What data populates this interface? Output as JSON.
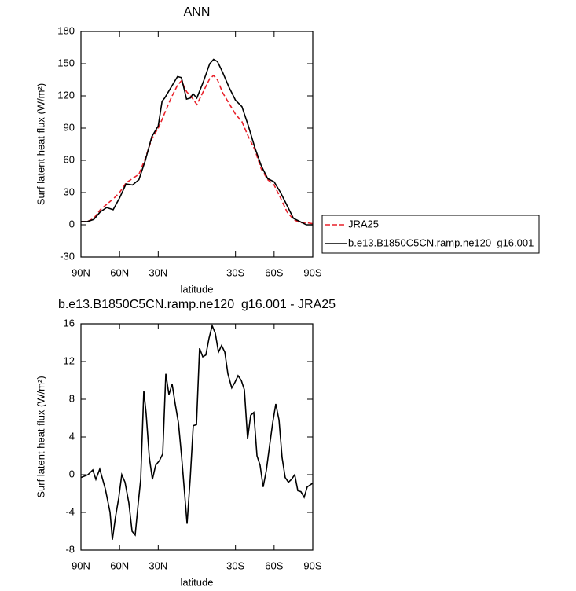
{
  "chart_data": [
    {
      "type": "line",
      "title": "ANN",
      "xlabel": "latitude",
      "ylabel": "Surf latent heat flux (W/m²)",
      "xlim": [
        90,
        -90
      ],
      "xticks": [
        {
          "value": 90,
          "label": "90N"
        },
        {
          "value": 60,
          "label": "60N"
        },
        {
          "value": 30,
          "label": "30N"
        },
        {
          "value": -30,
          "label": "30S"
        },
        {
          "value": -60,
          "label": "60S"
        },
        {
          "value": -90,
          "label": "90S"
        }
      ],
      "ylim": [
        -30,
        180
      ],
      "yticks": [
        -30,
        0,
        30,
        60,
        90,
        120,
        150,
        180
      ],
      "legend": "outside-right",
      "x": [
        90,
        85,
        80,
        75,
        70,
        65,
        60,
        55,
        50,
        45,
        40,
        35,
        30,
        27,
        25,
        20,
        15,
        12,
        8,
        5,
        3,
        0,
        -5,
        -10,
        -13,
        -16,
        -20,
        -25,
        -30,
        -35,
        -40,
        -45,
        -50,
        -55,
        -60,
        -65,
        -70,
        -75,
        -80,
        -85,
        -90
      ],
      "series": [
        {
          "name": "JRA25",
          "color": "#e8212a",
          "dash": true,
          "values": [
            3,
            3,
            6,
            14,
            19,
            24,
            30,
            39,
            43,
            47,
            62,
            80,
            90,
            98,
            104,
            118,
            130,
            134,
            124,
            120,
            117,
            112,
            124,
            136,
            139,
            135,
            123,
            113,
            103,
            96,
            82,
            70,
            52,
            42,
            37,
            25,
            12,
            5,
            2,
            2,
            1
          ]
        },
        {
          "name": "b.e13.B1850C5CN.ramp.ne120_g16.001",
          "color": "#000000",
          "dash": false,
          "values": [
            3,
            3,
            5,
            12,
            16,
            14,
            25,
            38,
            37,
            42,
            60,
            82,
            92,
            115,
            118,
            128,
            138,
            137,
            117,
            118,
            122,
            118,
            133,
            150,
            154,
            152,
            142,
            128,
            116,
            110,
            92,
            72,
            55,
            43,
            40,
            30,
            18,
            6,
            3,
            0,
            0
          ]
        }
      ]
    },
    {
      "type": "line",
      "title": "b.e13.B1850C5CN.ramp.ne120_g16.001 - JRA25",
      "xlabel": "latitude",
      "ylabel": "Surf latent heat flux (W/m²)",
      "xlim": [
        90,
        -90
      ],
      "xticks": [
        {
          "value": 90,
          "label": "90N"
        },
        {
          "value": 60,
          "label": "60N"
        },
        {
          "value": 30,
          "label": "30N"
        },
        {
          "value": -30,
          "label": "30S"
        },
        {
          "value": -60,
          "label": "60S"
        },
        {
          "value": -90,
          "label": "90S"
        }
      ],
      "ylim": [
        -8,
        16
      ],
      "yticks": [
        -8,
        -4,
        0,
        4,
        8,
        12,
        16
      ],
      "x": [
        90,
        84.5,
        80.8,
        78.4,
        75.4,
        71.1,
        67.4,
        65.6,
        63.2,
        60.7,
        58.3,
        55.8,
        52.8,
        50.3,
        47.9,
        45.5,
        43.6,
        41.2,
        39.4,
        36.9,
        34.5,
        32,
        29,
        26.5,
        24.1,
        21.7,
        19.2,
        16.8,
        14.3,
        11.9,
        10.1,
        7.6,
        5.2,
        2.8,
        0.3,
        -2.1,
        -4.6,
        -7,
        -9.5,
        -11.9,
        -14.3,
        -16.8,
        -19.2,
        -21.7,
        -24.1,
        -27.1,
        -29.6,
        -32,
        -34.5,
        -36.9,
        -39.4,
        -41.8,
        -44.2,
        -46.7,
        -49.1,
        -51.5,
        -54,
        -56.4,
        -58.9,
        -61.3,
        -63.8,
        -66.2,
        -68.6,
        -71.1,
        -73.5,
        -76,
        -78.4,
        -80.8,
        -83.3,
        -85.7,
        -90
      ],
      "series": [
        {
          "color": "#000000",
          "dash": false,
          "values": [
            -0.3,
            0,
            0.5,
            -0.5,
            0.6,
            -1.5,
            -4,
            -6.9,
            -4.5,
            -2.5,
            0,
            -0.8,
            -3,
            -6,
            -6.4,
            -3,
            -0.5,
            8.9,
            6.5,
            1.8,
            -0.5,
            1,
            1.5,
            2.2,
            10.7,
            8.5,
            9.6,
            7.5,
            5.5,
            2,
            -1,
            -5.2,
            -0.5,
            5.2,
            5.3,
            13.4,
            12.5,
            12.7,
            14.5,
            15.8,
            15,
            13,
            13.7,
            13,
            10.7,
            9.2,
            9.8,
            10.5,
            10,
            9,
            3.8,
            6.3,
            6.6,
            2,
            1,
            -1.3,
            0.5,
            3,
            5.5,
            7.5,
            5.8,
            1.8,
            -0.3,
            -0.8,
            -0.5,
            0,
            -1.7,
            -1.8,
            -2.4,
            -1.3,
            -0.9
          ]
        }
      ]
    }
  ]
}
